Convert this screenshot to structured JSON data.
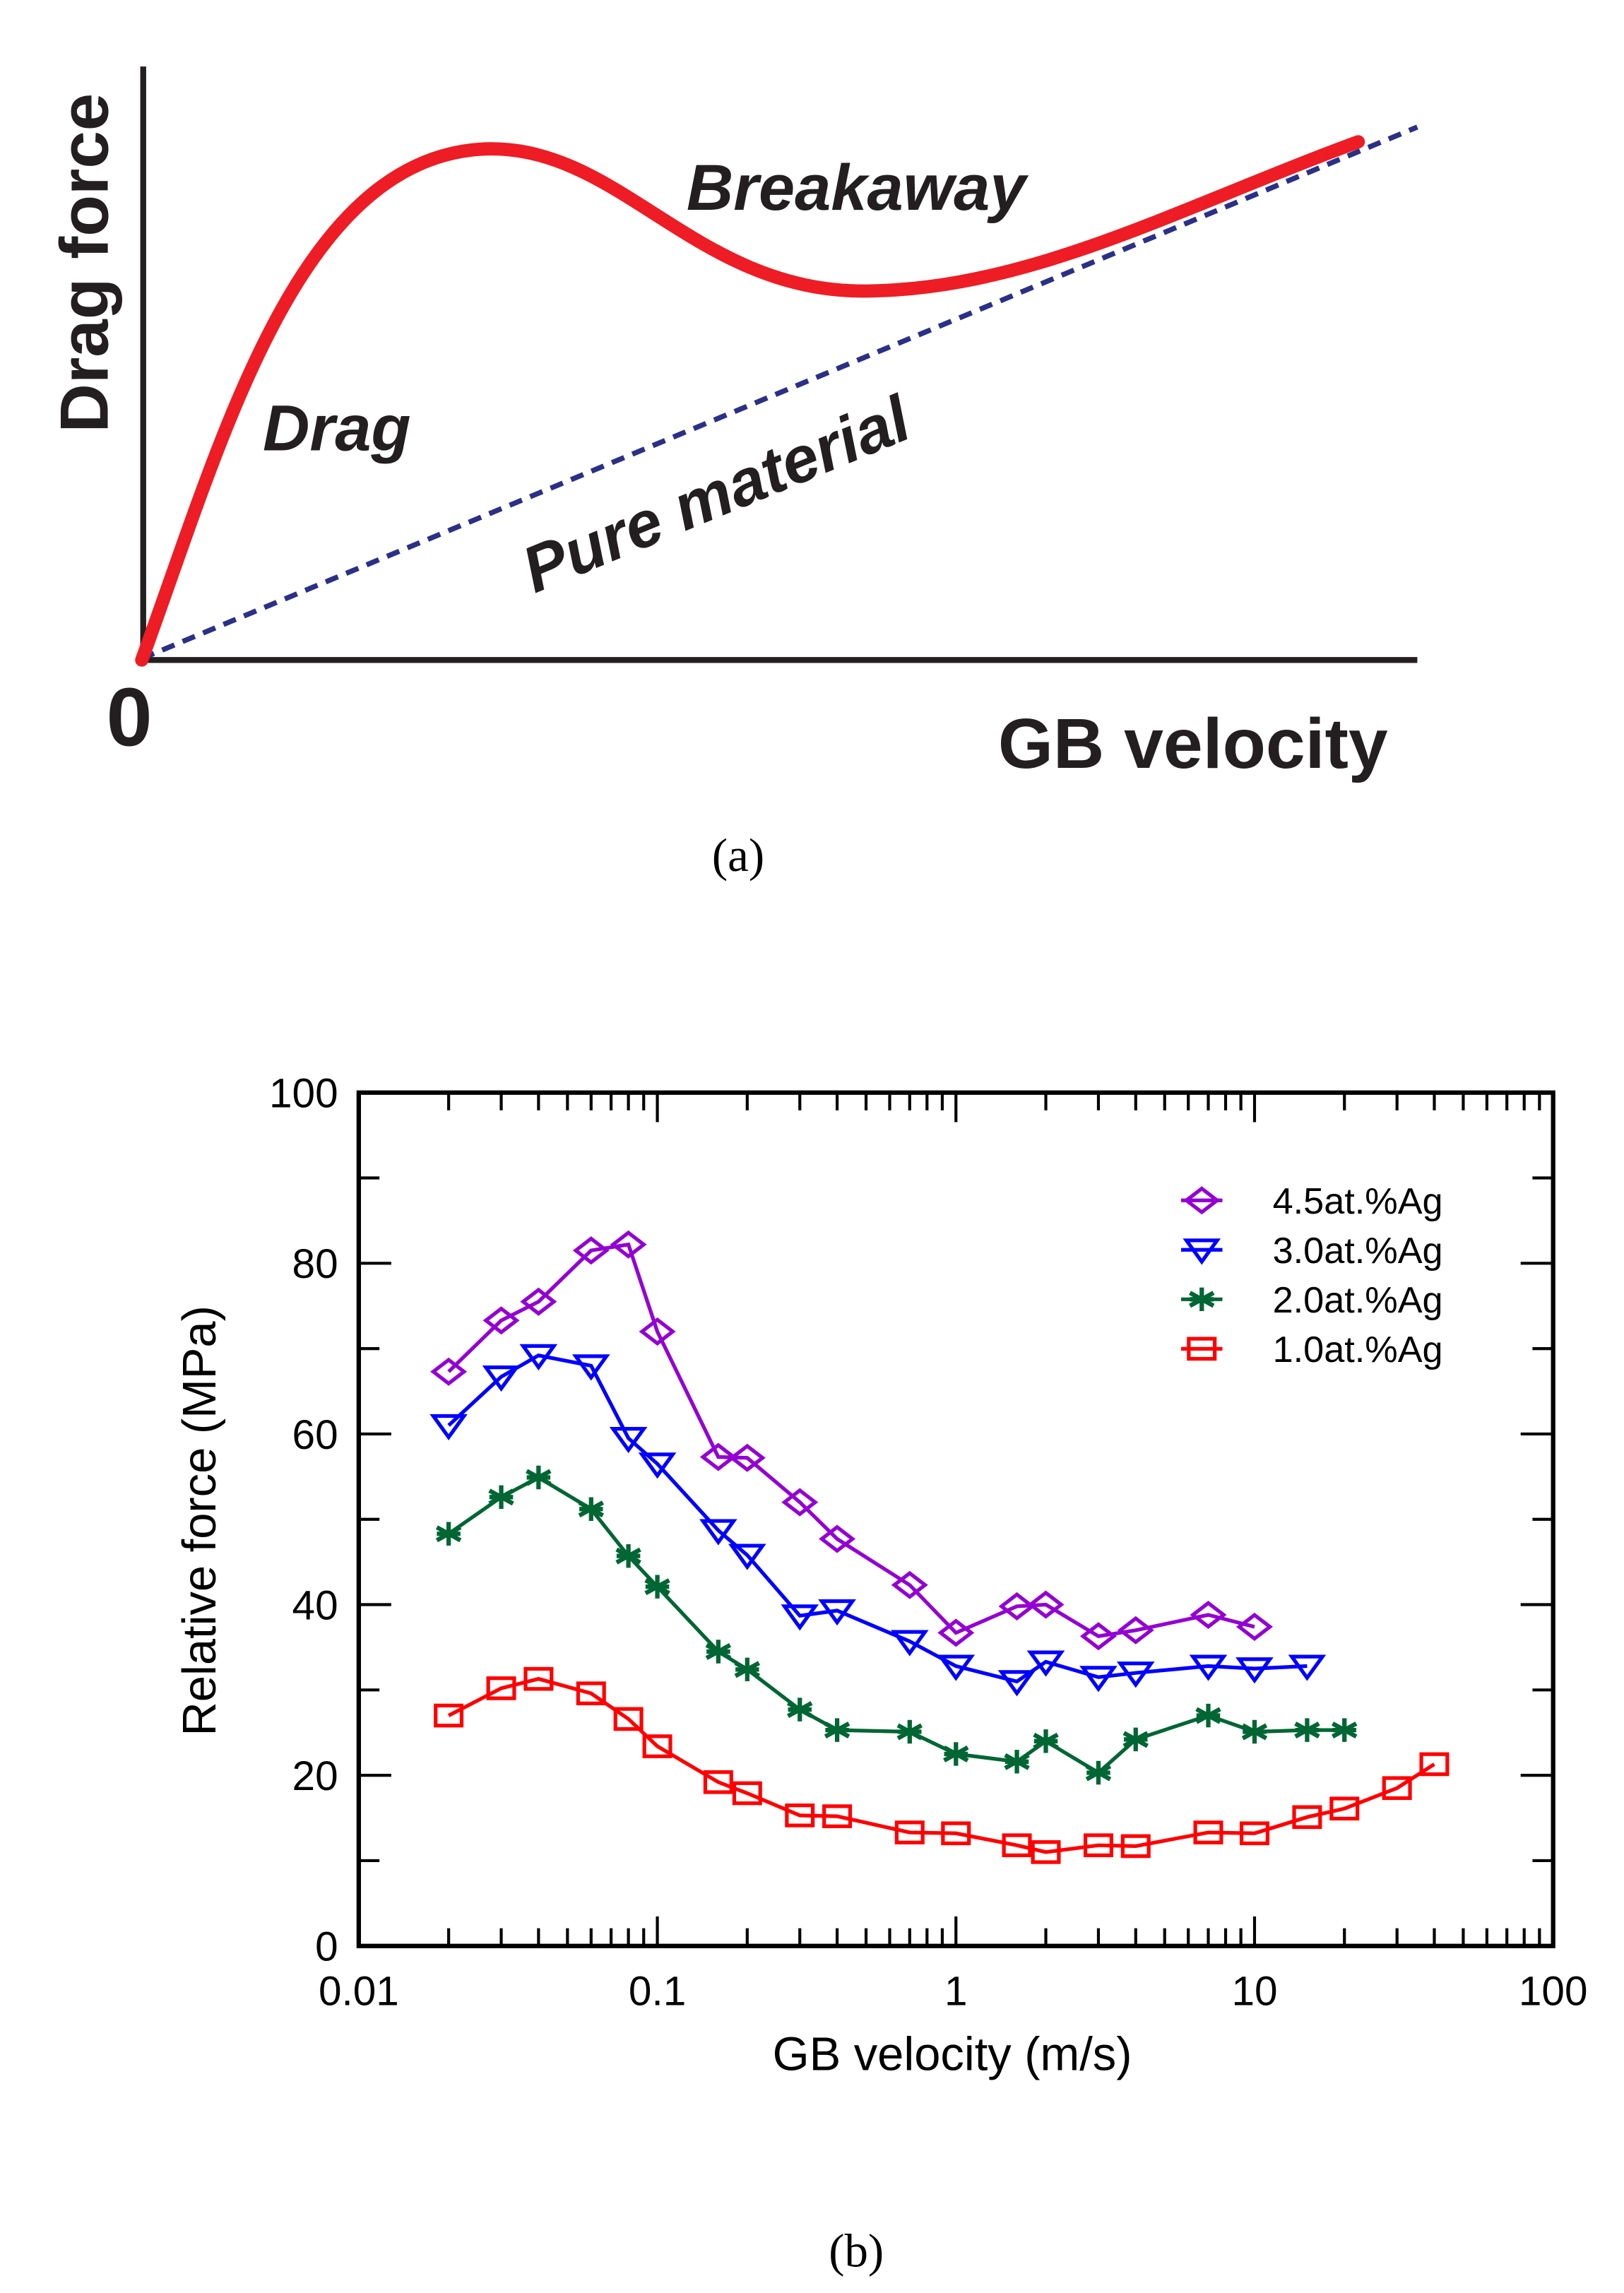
{
  "panel_a": {
    "caption": "(a)",
    "ylabel": "Drag force",
    "xlabel": "GB velocity",
    "origin_label": "0",
    "annotations": {
      "drag": "Drag",
      "breakaway": "Breakaway",
      "pure": "Pure material"
    },
    "colors": {
      "curve": "#ee1c24",
      "pure": "#2b3087"
    }
  },
  "chart_data": [
    {
      "type": "line",
      "title": "",
      "caption": "(b)",
      "xlabel": "GB velocity (m/s)",
      "ylabel": "Relative force (MPa)",
      "xscale": "log",
      "xlim": [
        0.01,
        100
      ],
      "ylim": [
        0,
        100
      ],
      "xticks": [
        "0.01",
        "0.1",
        "1",
        "10",
        "100"
      ],
      "yticks": [
        "0",
        "20",
        "40",
        "60",
        "80",
        "100"
      ],
      "grid": false,
      "legend": "top-right",
      "series": [
        {
          "name": "4.5at.%Ag",
          "color": "#9400d3",
          "marker": "diamond",
          "x": [
            0.02,
            0.03,
            0.04,
            0.06,
            0.08,
            0.1,
            0.16,
            0.2,
            0.3,
            0.4,
            0.7,
            1,
            1.6,
            2,
            3,
            4,
            7,
            10
          ],
          "y": [
            67.3,
            73.3,
            75.5,
            81.5,
            82.2,
            72,
            57.3,
            57.2,
            52,
            47.7,
            42.3,
            36.7,
            39.8,
            40,
            36.3,
            37,
            38.8,
            37.4
          ]
        },
        {
          "name": "3.0at.%Ag",
          "color": "#0000ff",
          "marker": "triangle-down",
          "x": [
            0.02,
            0.03,
            0.04,
            0.06,
            0.08,
            0.1,
            0.16,
            0.2,
            0.3,
            0.4,
            0.7,
            1,
            1.6,
            2,
            3,
            4,
            7,
            10,
            15
          ],
          "y": [
            61,
            66.7,
            69.2,
            68,
            59.5,
            56.5,
            48.7,
            45.8,
            38.7,
            39.3,
            35.7,
            32.8,
            31,
            33.3,
            31.5,
            32,
            32.8,
            32.5,
            32.8
          ]
        },
        {
          "name": "2.0at.%Ag",
          "color": "#006633",
          "marker": "asterisk",
          "x": [
            0.02,
            0.03,
            0.04,
            0.06,
            0.08,
            0.1,
            0.16,
            0.2,
            0.3,
            0.4,
            0.7,
            1,
            1.6,
            2,
            3,
            4,
            7,
            10,
            15,
            20
          ],
          "y": [
            48.3,
            52.6,
            54.9,
            51.2,
            45.7,
            42.1,
            34.5,
            32.4,
            27.7,
            25.3,
            25.1,
            22.5,
            21.6,
            24,
            20.3,
            24.2,
            27,
            25.1,
            25.3,
            25.3
          ]
        },
        {
          "name": "1.0at.%Ag",
          "color": "#ff0000",
          "marker": "square",
          "x": [
            0.02,
            0.03,
            0.04,
            0.06,
            0.08,
            0.1,
            0.16,
            0.2,
            0.3,
            0.4,
            0.7,
            1,
            1.6,
            2,
            3,
            4,
            7,
            10,
            15,
            20,
            30,
            40
          ],
          "y": [
            27,
            30.2,
            31.3,
            29.6,
            26.6,
            23.4,
            19.2,
            17.9,
            15.3,
            15.2,
            13.3,
            13.2,
            11.8,
            11,
            11.8,
            11.7,
            13.3,
            13.2,
            15.1,
            16.1,
            18.5,
            21.3
          ]
        }
      ]
    }
  ]
}
